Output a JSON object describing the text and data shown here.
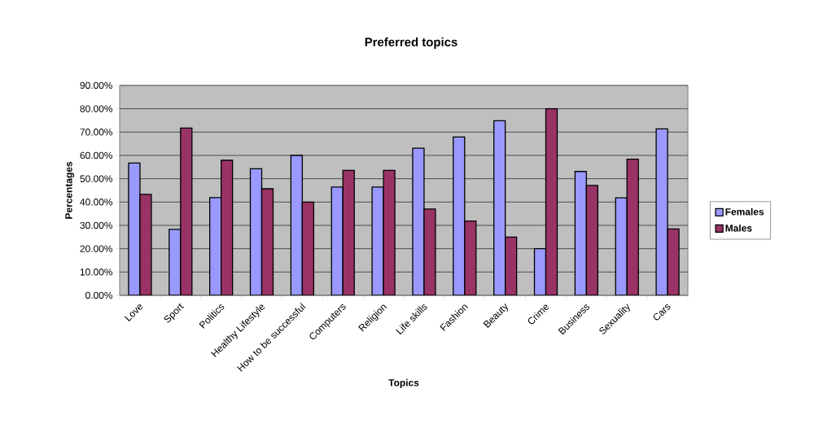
{
  "chart_data": {
    "type": "bar",
    "title": "Preferred topics",
    "xlabel": "Topics",
    "ylabel": "Percentages",
    "categories": [
      "Love",
      "Sport",
      "Politics",
      "Healthy Lifestyle",
      "How to be successful",
      "Computers",
      "Religion",
      "Life skills",
      "Fashion",
      "Beauty",
      "Crime",
      "Business",
      "Sexuality",
      "Cars"
    ],
    "series": [
      {
        "name": "Females",
        "color": "#9999ff",
        "values": [
          56.7,
          28.3,
          41.9,
          54.3,
          60.0,
          46.4,
          46.4,
          63.1,
          67.9,
          74.9,
          20.0,
          53.1,
          41.8,
          71.4
        ]
      },
      {
        "name": "Males",
        "color": "#993366",
        "values": [
          43.3,
          71.7,
          57.9,
          45.7,
          40.0,
          53.6,
          53.6,
          37.0,
          31.9,
          25.0,
          80.0,
          47.1,
          58.4,
          28.5
        ]
      }
    ],
    "ylim": [
      0,
      90
    ],
    "yticks": [
      {
        "value": 0,
        "label": "0.00%"
      },
      {
        "value": 10,
        "label": "10.00%"
      },
      {
        "value": 20,
        "label": "20.00%"
      },
      {
        "value": 30,
        "label": "30.00%"
      },
      {
        "value": 40,
        "label": "40.00%"
      },
      {
        "value": 50,
        "label": "50.00%"
      },
      {
        "value": 60,
        "label": "60.00%"
      },
      {
        "value": 70,
        "label": "70.00%"
      },
      {
        "value": 80,
        "label": "80.00%"
      },
      {
        "value": 90,
        "label": "90.00%"
      }
    ],
    "grid": "y",
    "legend": "right"
  }
}
